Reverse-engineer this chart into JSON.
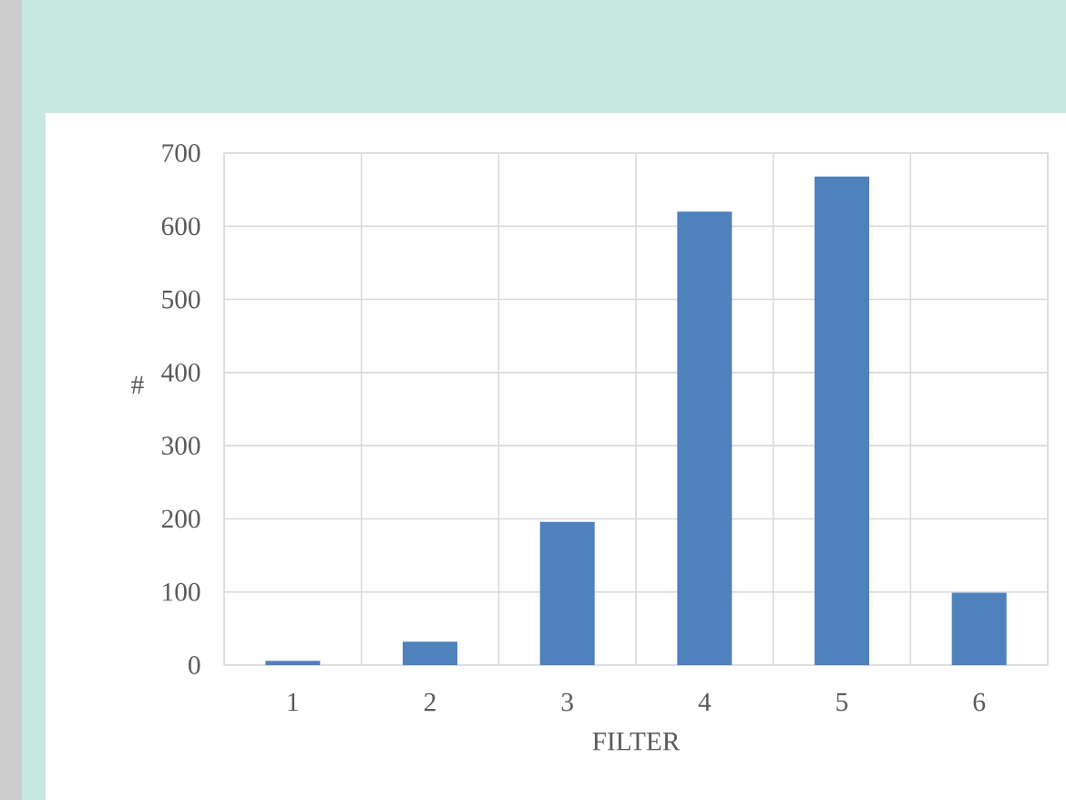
{
  "chart_data": {
    "type": "bar",
    "xlabel": "FILTER",
    "ylabel": "#",
    "categories": [
      "1",
      "2",
      "3",
      "4",
      "5",
      "6"
    ],
    "values": [
      6,
      32,
      196,
      620,
      668,
      99
    ],
    "color": "#4f81bd",
    "ylim": [
      0,
      700
    ],
    "yticks": [
      0,
      100,
      200,
      300,
      400,
      500,
      600,
      700
    ],
    "grid": true
  }
}
